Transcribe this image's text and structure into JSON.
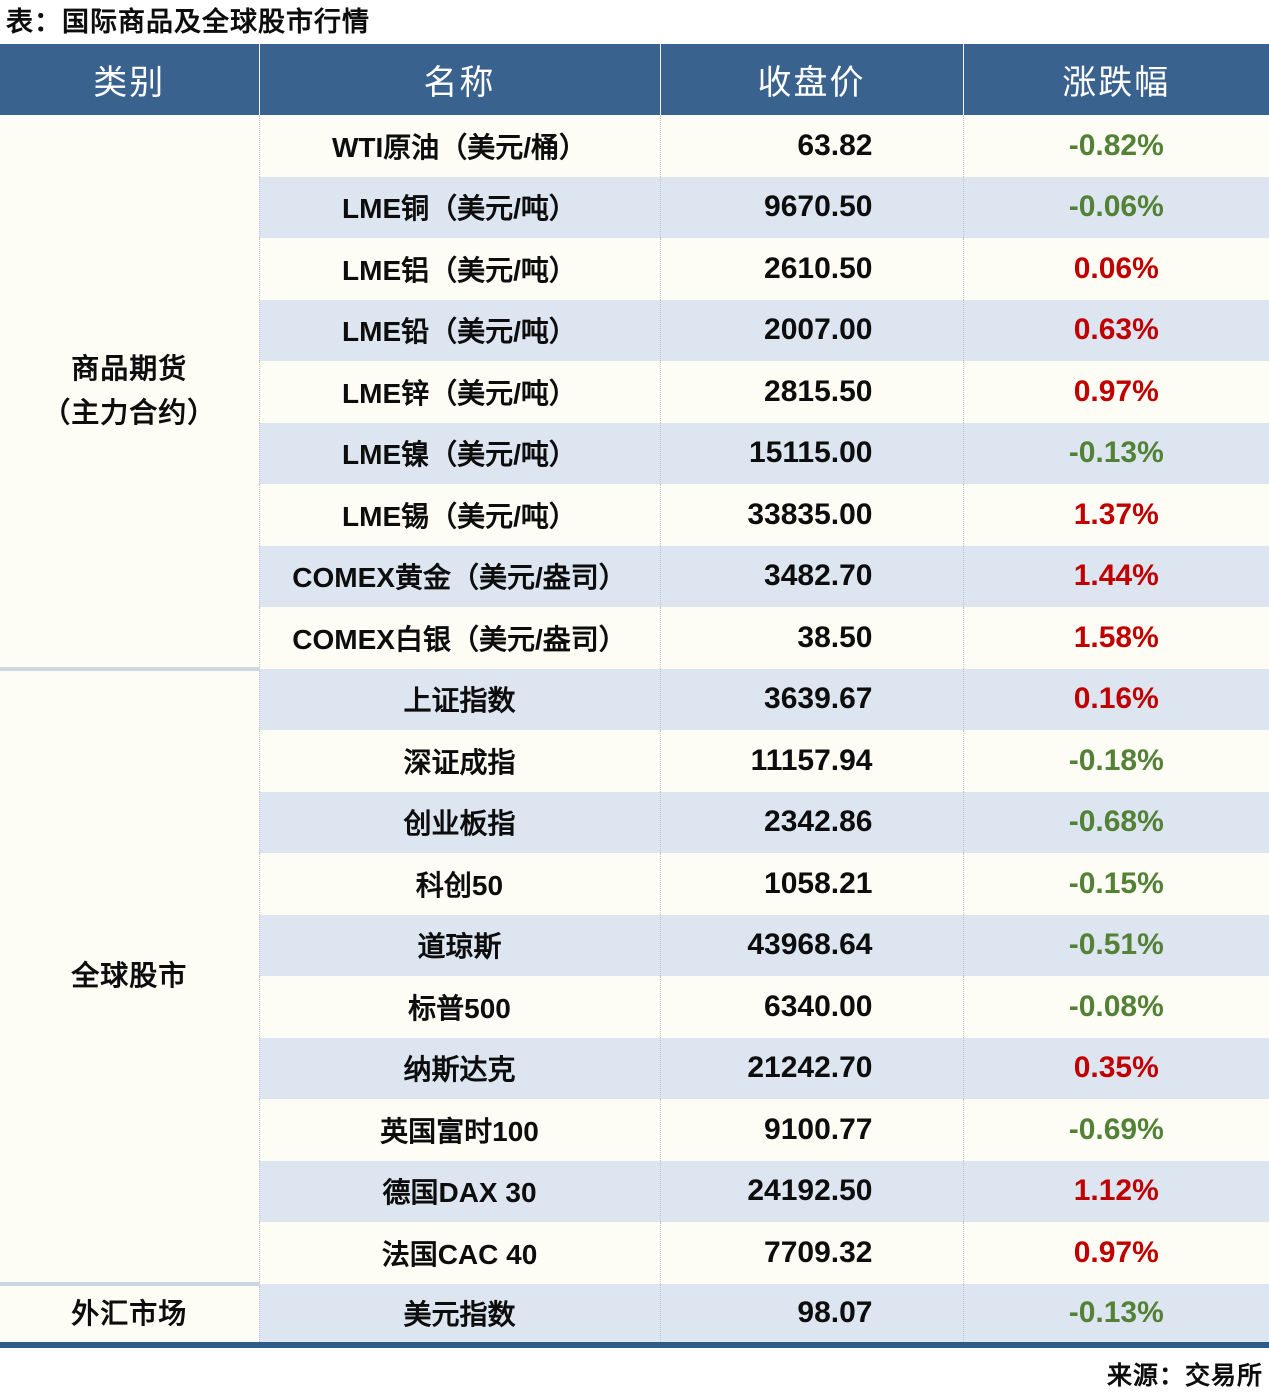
{
  "title": "表：国际商品及全球股市行情",
  "source": "来源：交易所",
  "palette": {
    "up": "#c00000",
    "down": "#538135",
    "header_bg": "#3a628e",
    "row_alt_bg": "#dce5f0",
    "row_bg": "#fdfdf6",
    "bottom_rule": "#2e5b88",
    "group_divider": "#ccd7e3"
  },
  "table": {
    "headers": {
      "category": "类别",
      "name": "名称",
      "close": "收盘价",
      "change": "涨跌幅"
    },
    "categories": [
      {
        "label": "商品期货（主力合约）",
        "label_lines": [
          "商品期货",
          "（主力合约）"
        ],
        "rowspan": 9
      },
      {
        "label": "全球股市",
        "label_lines": [
          "全球股市"
        ],
        "rowspan": 10
      },
      {
        "label": "外汇市场",
        "label_lines": [
          "外汇市场"
        ],
        "rowspan": 1
      }
    ],
    "rows": [
      {
        "name": "WTI原油（美元/桶）",
        "close": "63.82",
        "change": "-0.82%"
      },
      {
        "name": "LME铜（美元/吨）",
        "close": "9670.50",
        "change": "-0.06%"
      },
      {
        "name": "LME铝（美元/吨）",
        "close": "2610.50",
        "change": "0.06%"
      },
      {
        "name": "LME铅（美元/吨）",
        "close": "2007.00",
        "change": "0.63%"
      },
      {
        "name": "LME锌（美元/吨）",
        "close": "2815.50",
        "change": "0.97%"
      },
      {
        "name": "LME镍（美元/吨）",
        "close": "15115.00",
        "change": "-0.13%"
      },
      {
        "name": "LME锡（美元/吨）",
        "close": "33835.00",
        "change": "1.37%"
      },
      {
        "name": "COMEX黄金（美元/盎司）",
        "close": "3482.70",
        "change": "1.44%"
      },
      {
        "name": "COMEX白银（美元/盎司）",
        "close": "38.50",
        "change": "1.58%"
      },
      {
        "name": "上证指数",
        "close": "3639.67",
        "change": "0.16%"
      },
      {
        "name": "深证成指",
        "close": "11157.94",
        "change": "-0.18%"
      },
      {
        "name": "创业板指",
        "close": "2342.86",
        "change": "-0.68%"
      },
      {
        "name": "科创50",
        "close": "1058.21",
        "change": "-0.15%"
      },
      {
        "name": "道琼斯",
        "close": "43968.64",
        "change": "-0.51%"
      },
      {
        "name": "标普500",
        "close": "6340.00",
        "change": "-0.08%"
      },
      {
        "name": "纳斯达克",
        "close": "21242.70",
        "change": "0.35%"
      },
      {
        "name": "英国富时100",
        "close": "9100.77",
        "change": "-0.69%"
      },
      {
        "name": "德国DAX 30",
        "close": "24192.50",
        "change": "1.12%"
      },
      {
        "name": "法国CAC 40",
        "close": "7709.32",
        "change": "0.97%"
      },
      {
        "name": "美元指数",
        "close": "98.07",
        "change": "-0.13%"
      }
    ]
  },
  "chart_data": {
    "type": "table",
    "title": "表：国际商品及全球股市行情",
    "source": "来源：交易所",
    "columns": [
      "类别",
      "名称",
      "收盘价",
      "涨跌幅"
    ],
    "rows": [
      {
        "category": "商品期货（主力合约）",
        "name": "WTI原油（美元/桶）",
        "close": 63.82,
        "change_pct": -0.82
      },
      {
        "category": "商品期货（主力合约）",
        "name": "LME铜（美元/吨）",
        "close": 9670.5,
        "change_pct": -0.06
      },
      {
        "category": "商品期货（主力合约）",
        "name": "LME铝（美元/吨）",
        "close": 2610.5,
        "change_pct": 0.06
      },
      {
        "category": "商品期货（主力合约）",
        "name": "LME铅（美元/吨）",
        "close": 2007.0,
        "change_pct": 0.63
      },
      {
        "category": "商品期货（主力合约）",
        "name": "LME锌（美元/吨）",
        "close": 2815.5,
        "change_pct": 0.97
      },
      {
        "category": "商品期货（主力合约）",
        "name": "LME镍（美元/吨）",
        "close": 15115.0,
        "change_pct": -0.13
      },
      {
        "category": "商品期货（主力合约）",
        "name": "LME锡（美元/吨）",
        "close": 33835.0,
        "change_pct": 1.37
      },
      {
        "category": "商品期货（主力合约）",
        "name": "COMEX黄金（美元/盎司）",
        "close": 3482.7,
        "change_pct": 1.44
      },
      {
        "category": "商品期货（主力合约）",
        "name": "COMEX白银（美元/盎司）",
        "close": 38.5,
        "change_pct": 1.58
      },
      {
        "category": "全球股市",
        "name": "上证指数",
        "close": 3639.67,
        "change_pct": 0.16
      },
      {
        "category": "全球股市",
        "name": "深证成指",
        "close": 11157.94,
        "change_pct": -0.18
      },
      {
        "category": "全球股市",
        "name": "创业板指",
        "close": 2342.86,
        "change_pct": -0.68
      },
      {
        "category": "全球股市",
        "name": "科创50",
        "close": 1058.21,
        "change_pct": -0.15
      },
      {
        "category": "全球股市",
        "name": "道琼斯",
        "close": 43968.64,
        "change_pct": -0.51
      },
      {
        "category": "全球股市",
        "name": "标普500",
        "close": 6340.0,
        "change_pct": -0.08
      },
      {
        "category": "全球股市",
        "name": "纳斯达克",
        "close": 21242.7,
        "change_pct": 0.35
      },
      {
        "category": "全球股市",
        "name": "英国富时100",
        "close": 9100.77,
        "change_pct": -0.69
      },
      {
        "category": "全球股市",
        "name": "德国DAX 30",
        "close": 24192.5,
        "change_pct": 1.12
      },
      {
        "category": "全球股市",
        "name": "法国CAC 40",
        "close": 7709.32,
        "change_pct": 0.97
      },
      {
        "category": "外汇市场",
        "name": "美元指数",
        "close": 98.07,
        "change_pct": -0.13
      }
    ],
    "color_convention": {
      "positive": "#c00000",
      "negative": "#538135"
    }
  }
}
